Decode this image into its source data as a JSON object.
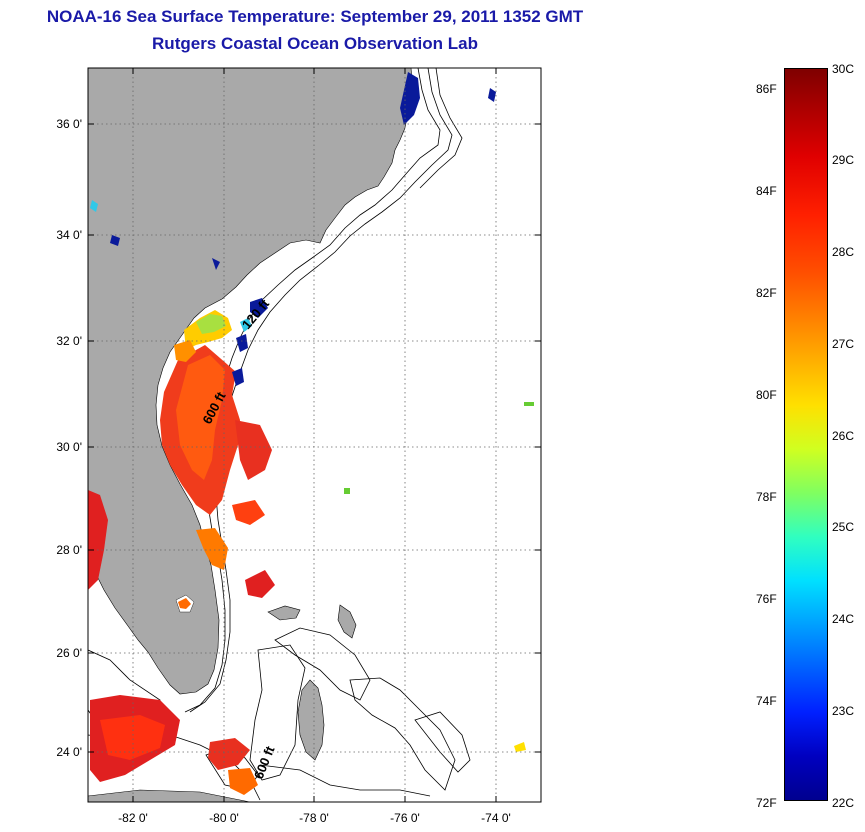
{
  "header": {
    "title": "NOAA-16 Sea Surface Temperature:  September 29, 2011 1352 GMT",
    "subtitle": "Rutgers Coastal Ocean Observation Lab"
  },
  "map": {
    "lat_ticks": [
      "36 0'",
      "34 0'",
      "32 0'",
      "30 0'",
      "28 0'",
      "26 0'",
      "24 0'"
    ],
    "lon_ticks": [
      "-82 0'",
      "-80 0'",
      "-78 0'",
      "-76 0'",
      "-74 0'"
    ],
    "lat_range": [
      23,
      37.1
    ],
    "lon_range": [
      -83,
      -73
    ],
    "contour_labels": [
      "120 ft",
      "600 ft",
      "600 ft"
    ],
    "colors": {
      "land": "#a9a9a9",
      "ocean_no_data": "#ffffff"
    }
  },
  "colorbar": {
    "fahrenheit_labels": [
      "86F",
      "84F",
      "82F",
      "80F",
      "78F",
      "76F",
      "74F",
      "72F"
    ],
    "celsius_labels": [
      "30C",
      "29C",
      "28C",
      "27C",
      "26C",
      "25C",
      "24C",
      "23C",
      "22C"
    ],
    "range_c": [
      22,
      30
    ],
    "colormap": "jet"
  }
}
